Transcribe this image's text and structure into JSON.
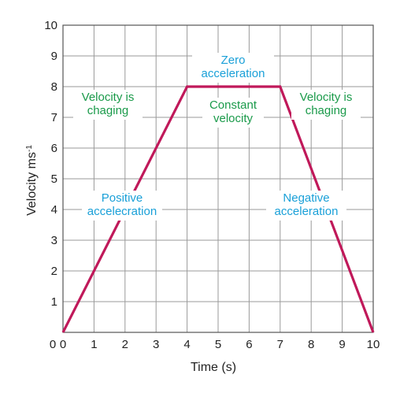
{
  "chart_data": {
    "type": "line",
    "xlabel": "Time (s)",
    "ylabel": "Velocity ms",
    "ylabel_sup": "-1",
    "xlim": [
      0,
      10
    ],
    "ylim": [
      0,
      10
    ],
    "grid": true,
    "x_ticks": [
      "0",
      "1",
      "2",
      "3",
      "4",
      "5",
      "6",
      "7",
      "8",
      "9",
      "10"
    ],
    "y_ticks": [
      "1",
      "2",
      "3",
      "4",
      "5",
      "6",
      "7",
      "8",
      "9",
      "10"
    ],
    "series": [
      {
        "x": [
          0,
          4,
          7,
          10
        ],
        "y": [
          0,
          8,
          8,
          0
        ],
        "color": "#c0195a"
      }
    ],
    "annotations": [
      {
        "lines": [
          "Zero",
          "acceleration"
        ],
        "color": "#1aa0d8"
      },
      {
        "lines": [
          "Velocity is",
          "chaging"
        ],
        "color": "#1a9a4a"
      },
      {
        "lines": [
          "Constant",
          "velocity"
        ],
        "color": "#1a9a4a"
      },
      {
        "lines": [
          "Velocity is",
          "chaging"
        ],
        "color": "#1a9a4a"
      },
      {
        "lines": [
          "Positive",
          "accelecration"
        ],
        "color": "#1aa0d8"
      },
      {
        "lines": [
          "Negative",
          "acceleration"
        ],
        "color": "#1aa0d8"
      }
    ]
  }
}
